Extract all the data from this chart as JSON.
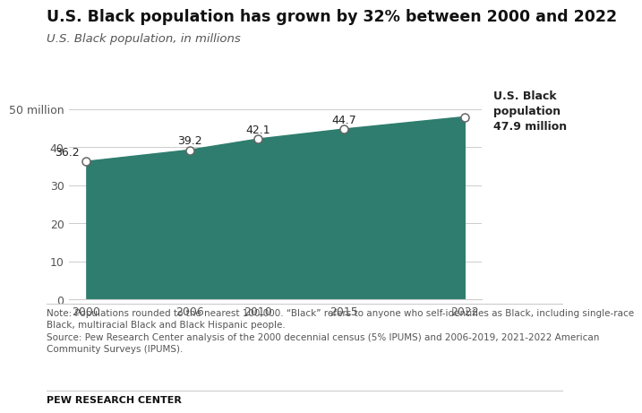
{
  "title": "U.S. Black population has grown by 32% between 2000 and 2022",
  "subtitle": "U.S. Black population, in millions",
  "years": [
    2000,
    2006,
    2010,
    2015,
    2022
  ],
  "values": [
    36.2,
    39.2,
    42.1,
    44.7,
    47.9
  ],
  "area_color": "#2E7D6E",
  "line_color": "#2E7D6E",
  "marker_face_color": "#ffffff",
  "marker_edge_color": "#666666",
  "background_color": "#ffffff",
  "yticks": [
    0,
    10,
    20,
    30,
    40,
    50
  ],
  "ylim": [
    0,
    57
  ],
  "xlim": [
    1999,
    2023
  ],
  "annotation_label": "U.S. Black\npopulation\n47.9 million",
  "note_text": "Note: Populations rounded to the nearest 100,000. “Black” refers to anyone who self-identifies as Black, including single-race\nBlack, multiracial Black and Black Hispanic people.\nSource: Pew Research Center analysis of the 2000 decennial census (5% IPUMS) and 2006-2019, 2021-2022 American\nCommunity Surveys (IPUMS).",
  "footer_text": "PEW RESEARCH CENTER",
  "title_fontsize": 12.5,
  "subtitle_fontsize": 9.5,
  "tick_fontsize": 9,
  "label_fontsize": 9,
  "note_fontsize": 7.5,
  "footer_fontsize": 8,
  "annotation_fontsize": 9
}
